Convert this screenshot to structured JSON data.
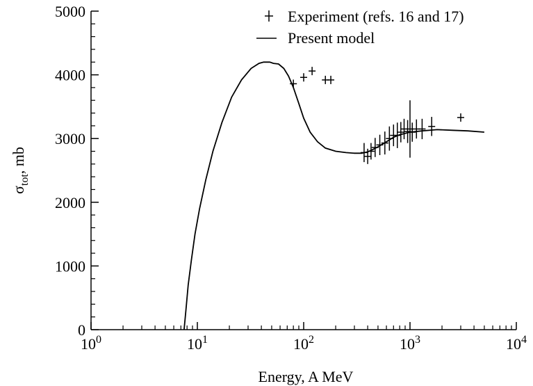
{
  "chart_data": {
    "type": "scatter",
    "xlabel": "Energy, A MeV",
    "ylabel_main": "σ",
    "ylabel_sub": "tot",
    "ylabel_unit": ", mb",
    "xscale": "log",
    "xlim": [
      1,
      10000
    ],
    "ylim": [
      0,
      5000
    ],
    "grid": false,
    "legend_position": "top-right",
    "x_ticks": [
      {
        "base": "10",
        "exp": "0"
      },
      {
        "base": "10",
        "exp": "1"
      },
      {
        "base": "10",
        "exp": "2"
      },
      {
        "base": "10",
        "exp": "3"
      },
      {
        "base": "10",
        "exp": "4"
      }
    ],
    "y_ticks": [
      "0",
      "1000",
      "2000",
      "3000",
      "4000",
      "5000"
    ],
    "series": [
      {
        "name": "Experiment (refs. 16 and 17)",
        "kind": "points_with_errorbars",
        "points": [
          {
            "x": 80,
            "y": 3860,
            "err": 40
          },
          {
            "x": 100,
            "y": 3960,
            "err": 40
          },
          {
            "x": 120,
            "y": 4060,
            "err": 40
          },
          {
            "x": 160,
            "y": 3920,
            "err": 40
          },
          {
            "x": 180,
            "y": 3920,
            "err": 40
          },
          {
            "x": 370,
            "y": 2780,
            "err": 150
          },
          {
            "x": 400,
            "y": 2720,
            "err": 120
          },
          {
            "x": 430,
            "y": 2800,
            "err": 130
          },
          {
            "x": 470,
            "y": 2860,
            "err": 150
          },
          {
            "x": 520,
            "y": 2900,
            "err": 160
          },
          {
            "x": 580,
            "y": 2930,
            "err": 180
          },
          {
            "x": 640,
            "y": 3000,
            "err": 190
          },
          {
            "x": 700,
            "y": 3050,
            "err": 170
          },
          {
            "x": 760,
            "y": 3050,
            "err": 200
          },
          {
            "x": 820,
            "y": 3100,
            "err": 160
          },
          {
            "x": 880,
            "y": 3150,
            "err": 160
          },
          {
            "x": 950,
            "y": 3110,
            "err": 180
          },
          {
            "x": 1000,
            "y": 3150,
            "err": 450
          },
          {
            "x": 1050,
            "y": 3100,
            "err": 150
          },
          {
            "x": 1150,
            "y": 3150,
            "err": 150
          },
          {
            "x": 1300,
            "y": 3150,
            "err": 160
          },
          {
            "x": 1600,
            "y": 3190,
            "err": 150
          },
          {
            "x": 3000,
            "y": 3330,
            "err": 50
          }
        ]
      },
      {
        "name": "Present model",
        "kind": "line",
        "points": [
          [
            7.5,
            0
          ],
          [
            7.8,
            300
          ],
          [
            8.2,
            700
          ],
          [
            8.8,
            1100
          ],
          [
            9.5,
            1500
          ],
          [
            10.5,
            1900
          ],
          [
            12,
            2350
          ],
          [
            14,
            2800
          ],
          [
            17,
            3250
          ],
          [
            21,
            3650
          ],
          [
            26,
            3920
          ],
          [
            32,
            4100
          ],
          [
            38,
            4180
          ],
          [
            42,
            4200
          ],
          [
            48,
            4200
          ],
          [
            52,
            4180
          ],
          [
            58,
            4170
          ],
          [
            65,
            4100
          ],
          [
            72,
            3980
          ],
          [
            80,
            3800
          ],
          [
            90,
            3550
          ],
          [
            100,
            3320
          ],
          [
            115,
            3100
          ],
          [
            135,
            2950
          ],
          [
            160,
            2850
          ],
          [
            200,
            2800
          ],
          [
            250,
            2780
          ],
          [
            300,
            2770
          ],
          [
            350,
            2770
          ],
          [
            400,
            2790
          ],
          [
            450,
            2830
          ],
          [
            500,
            2870
          ],
          [
            600,
            2950
          ],
          [
            700,
            3020
          ],
          [
            800,
            3060
          ],
          [
            1000,
            3100
          ],
          [
            1300,
            3120
          ],
          [
            1800,
            3140
          ],
          [
            2500,
            3130
          ],
          [
            3500,
            3120
          ],
          [
            5000,
            3100
          ]
        ]
      }
    ]
  }
}
